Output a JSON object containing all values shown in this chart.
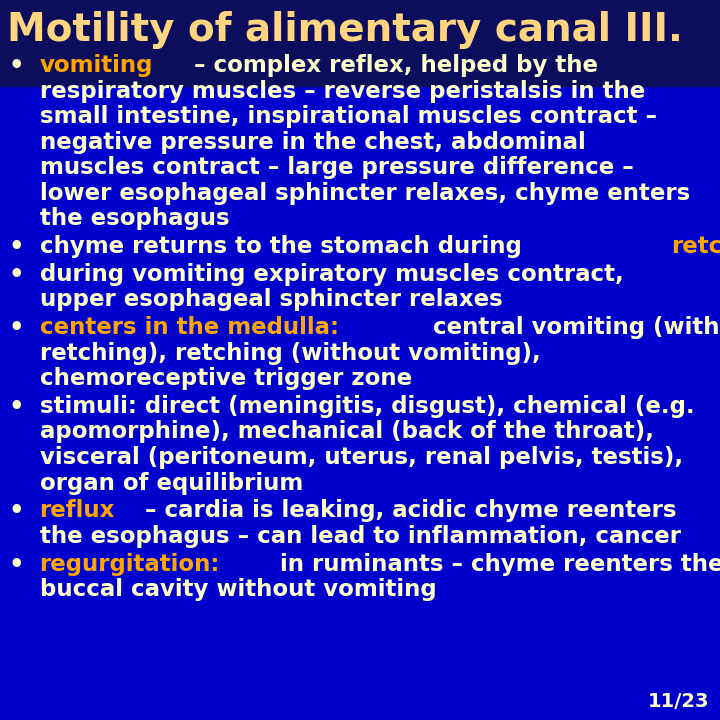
{
  "title": "Motility of alimentary canal III.",
  "bg_color_top": "#0d0d5e",
  "bg_color_bottom": "#0000cc",
  "title_color": "#FFD580",
  "body_color": "#FFFFCC",
  "highlight_orange": "#FFA500",
  "page_number": "11/23",
  "title_fontsize": 28,
  "body_fontsize": 16.5,
  "page_num_fontsize": 14,
  "bullets": [
    {
      "parts": [
        {
          "text": "vomiting",
          "color": "#FFA500"
        },
        {
          "text": " – complex reflex, helped by the\nrespiratory muscles – reverse peristalsis in the\nsmall intestine, inspirational muscles contract –\nnegative pressure in the chest, abdominal\nmuscles contract – large pressure difference –\nlower esophageal sphincter relaxes, chyme enters\nthe esophagus",
          "color": "#FFFFCC"
        }
      ]
    },
    {
      "parts": [
        {
          "text": "chyme returns to the stomach during ",
          "color": "#FFFFCC"
        },
        {
          "text": "retching",
          "color": "#FFA500"
        }
      ]
    },
    {
      "parts": [
        {
          "text": "during vomiting expiratory muscles contract,\nupper esophageal sphincter relaxes",
          "color": "#FFFFCC"
        }
      ]
    },
    {
      "parts": [
        {
          "text": "centers in the medulla:",
          "color": "#FFA500"
        },
        {
          "text": " central vomiting (without\nretching), retching (without vomiting),\nchemoreceptive trigger zone",
          "color": "#FFFFCC"
        }
      ]
    },
    {
      "parts": [
        {
          "text": "stimuli: direct (meningitis, disgust), chemical (e.g.\napomorphine), mechanical (back of the throat),\nvisceral (peritoneum, uterus, renal pelvis, testis),\norgan of equilibrium",
          "color": "#FFFFCC"
        }
      ]
    },
    {
      "parts": [
        {
          "text": "reflux",
          "color": "#FFA500"
        },
        {
          "text": " – cardia is leaking, acidic chyme reenters\nthe esophagus – can lead to inflammation, cancer",
          "color": "#FFFFCC"
        }
      ]
    },
    {
      "parts": [
        {
          "text": "regurgitation:",
          "color": "#FFA500"
        },
        {
          "text": " in ruminants – chyme reenters the\nbuccal cavity without vomiting",
          "color": "#FFFFCC"
        }
      ]
    }
  ]
}
